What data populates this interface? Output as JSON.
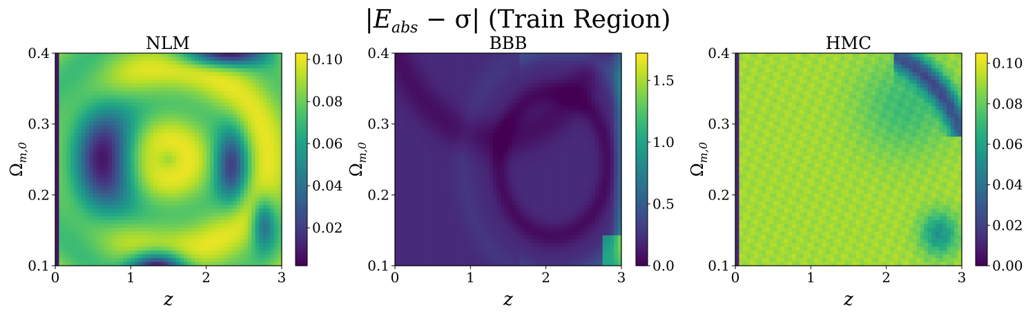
{
  "figure": {
    "suptitle": "|E_abs − σ| (Train Region)",
    "suptitle_parts": {
      "bar_l": "|",
      "E": "E",
      "abs": "abs",
      "minus_sigma": " − σ|",
      "rest": " (Train Region)"
    }
  },
  "chart_data": [
    {
      "type": "heatmap",
      "title": "NLM",
      "xlabel": "z",
      "ylabel": "Ω_{m,0}",
      "ylabel_parts": {
        "omega": "Ω",
        "sub": "m,0"
      },
      "xlim": [
        0,
        3
      ],
      "ylim": [
        0.1,
        0.4
      ],
      "xticks": [
        "0",
        "1",
        "2",
        "3"
      ],
      "yticks": [
        "0.1",
        "0.2",
        "0.3",
        "0.4"
      ],
      "colormap": "viridis",
      "colorbar_range": [
        0.002,
        0.103
      ],
      "colorbar_ticks": [
        "0.02",
        "0.04",
        "0.06",
        "0.08",
        "0.10"
      ],
      "colorbar_tick_values": [
        0.02,
        0.04,
        0.06,
        0.08,
        0.1
      ],
      "z_values_summary": "oscillatory interference pattern: low-error lobes around z≈0.6 and z≈2.3, bright ridges crossing near z≈1.6, Ω≈0.25"
    },
    {
      "type": "heatmap",
      "title": "BBB",
      "xlabel": "z",
      "ylabel": "Ω_{m,0}",
      "ylabel_parts": {
        "omega": "Ω",
        "sub": "m,0"
      },
      "xlim": [
        0,
        3
      ],
      "ylim": [
        0.1,
        0.4
      ],
      "xticks": [
        "0",
        "1",
        "2",
        "3"
      ],
      "yticks": [
        "0.1",
        "0.2",
        "0.3",
        "0.4"
      ],
      "colormap": "viridis",
      "colorbar_range": [
        0.0,
        1.72
      ],
      "colorbar_ticks": [
        "0.0",
        "0.5",
        "1.0",
        "1.5"
      ],
      "colorbar_tick_values": [
        0.0,
        0.5,
        1.0,
        1.5
      ],
      "z_values_summary": "mostly low error with a dark ring centred near z≈2.1, Ω≈0.25 and high error at the far right edge (z≈3)"
    },
    {
      "type": "heatmap",
      "title": "HMC",
      "xlabel": "z",
      "ylabel": "Ω_{m,0}",
      "ylabel_parts": {
        "omega": "Ω",
        "sub": "m,0"
      },
      "xlim": [
        0,
        3
      ],
      "ylim": [
        0.1,
        0.4
      ],
      "xticks": [
        "0",
        "1",
        "2",
        "3"
      ],
      "yticks": [
        "0.1",
        "0.2",
        "0.3",
        "0.4"
      ],
      "colormap": "viridis",
      "colorbar_range": [
        0.0,
        0.105
      ],
      "colorbar_ticks": [
        "0.00",
        "0.02",
        "0.04",
        "0.06",
        "0.08",
        "0.10"
      ],
      "colorbar_tick_values": [
        0.0,
        0.02,
        0.04,
        0.06,
        0.08,
        0.1
      ],
      "z_values_summary": "nearly uniform high error (~0.09) with noisy texture, a dark band at z≈0 and a dark arc near the top-right corner"
    }
  ]
}
